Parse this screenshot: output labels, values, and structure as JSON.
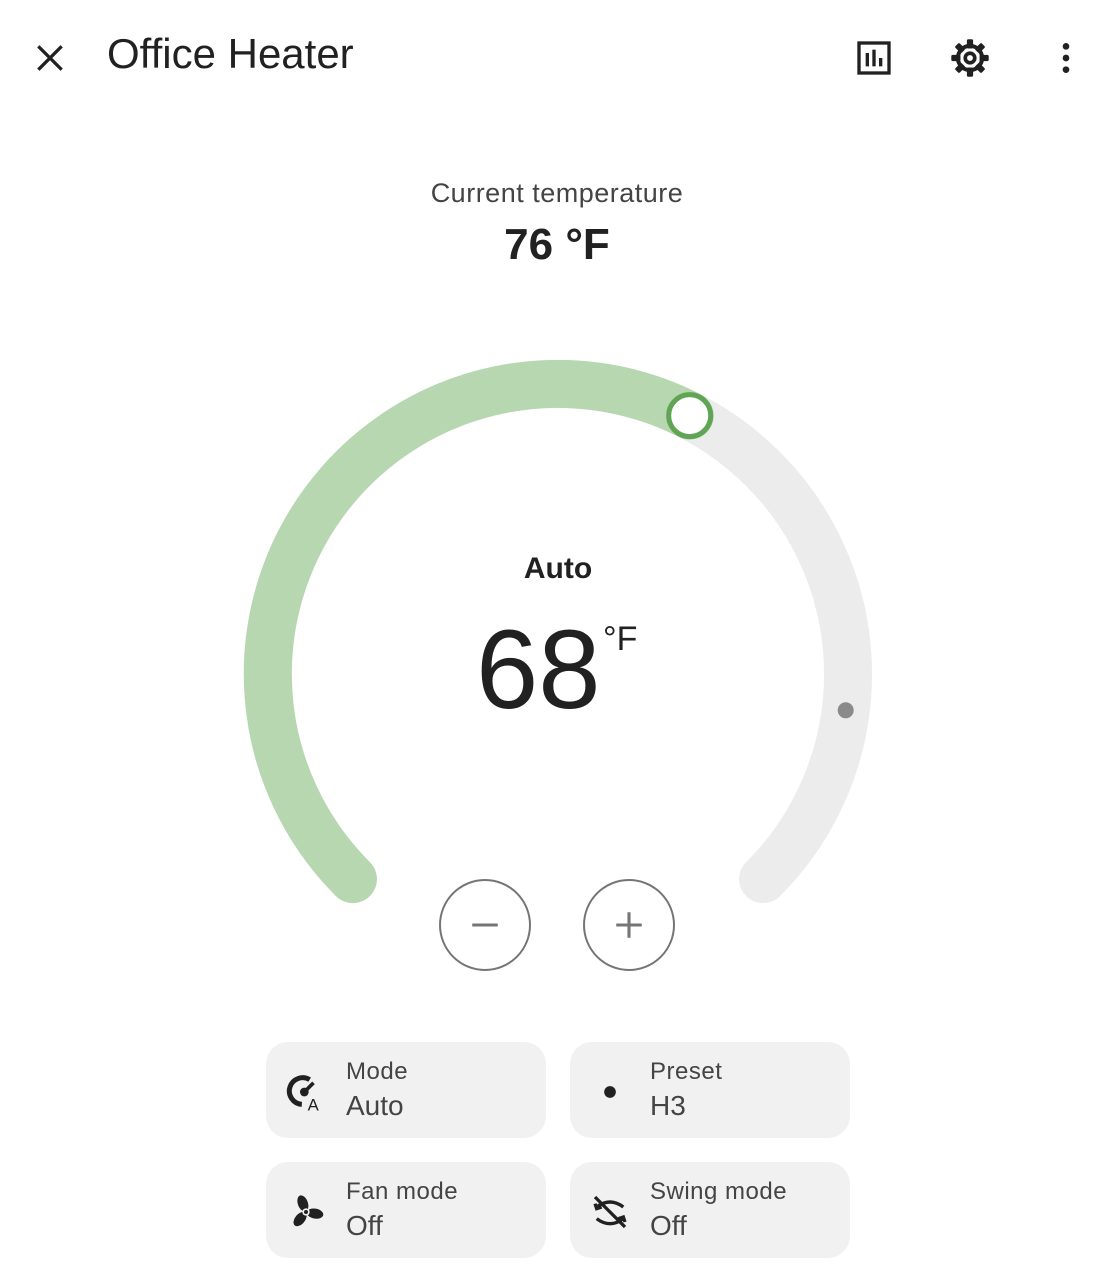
{
  "header": {
    "title": "Office Heater",
    "icons": {
      "close": "close-icon",
      "history": "chart-box-icon",
      "settings": "gear-icon",
      "more": "dots-vertical-icon"
    }
  },
  "current": {
    "label": "Current temperature",
    "value": "76 °F"
  },
  "dial": {
    "mode": "Auto",
    "target": "68",
    "unit": "°F",
    "target_fraction": 0.6,
    "current_fraction": 0.86,
    "colors": {
      "active": "#b6d7b0",
      "inactive": "#ececec",
      "handle": "#5fa554",
      "marker": "#8a8a8a"
    }
  },
  "controls": {
    "minus_icon": "minus-icon",
    "plus_icon": "plus-icon"
  },
  "chips": {
    "mode": {
      "label": "Mode",
      "value": "Auto",
      "icon": "thermostat-auto-icon"
    },
    "preset": {
      "label": "Preset",
      "value": "H3",
      "icon": "dot-icon"
    },
    "fan": {
      "label": "Fan mode",
      "value": "Off",
      "icon": "fan-icon"
    },
    "swing": {
      "label": "Swing mode",
      "value": "Off",
      "icon": "swing-off-icon"
    }
  }
}
